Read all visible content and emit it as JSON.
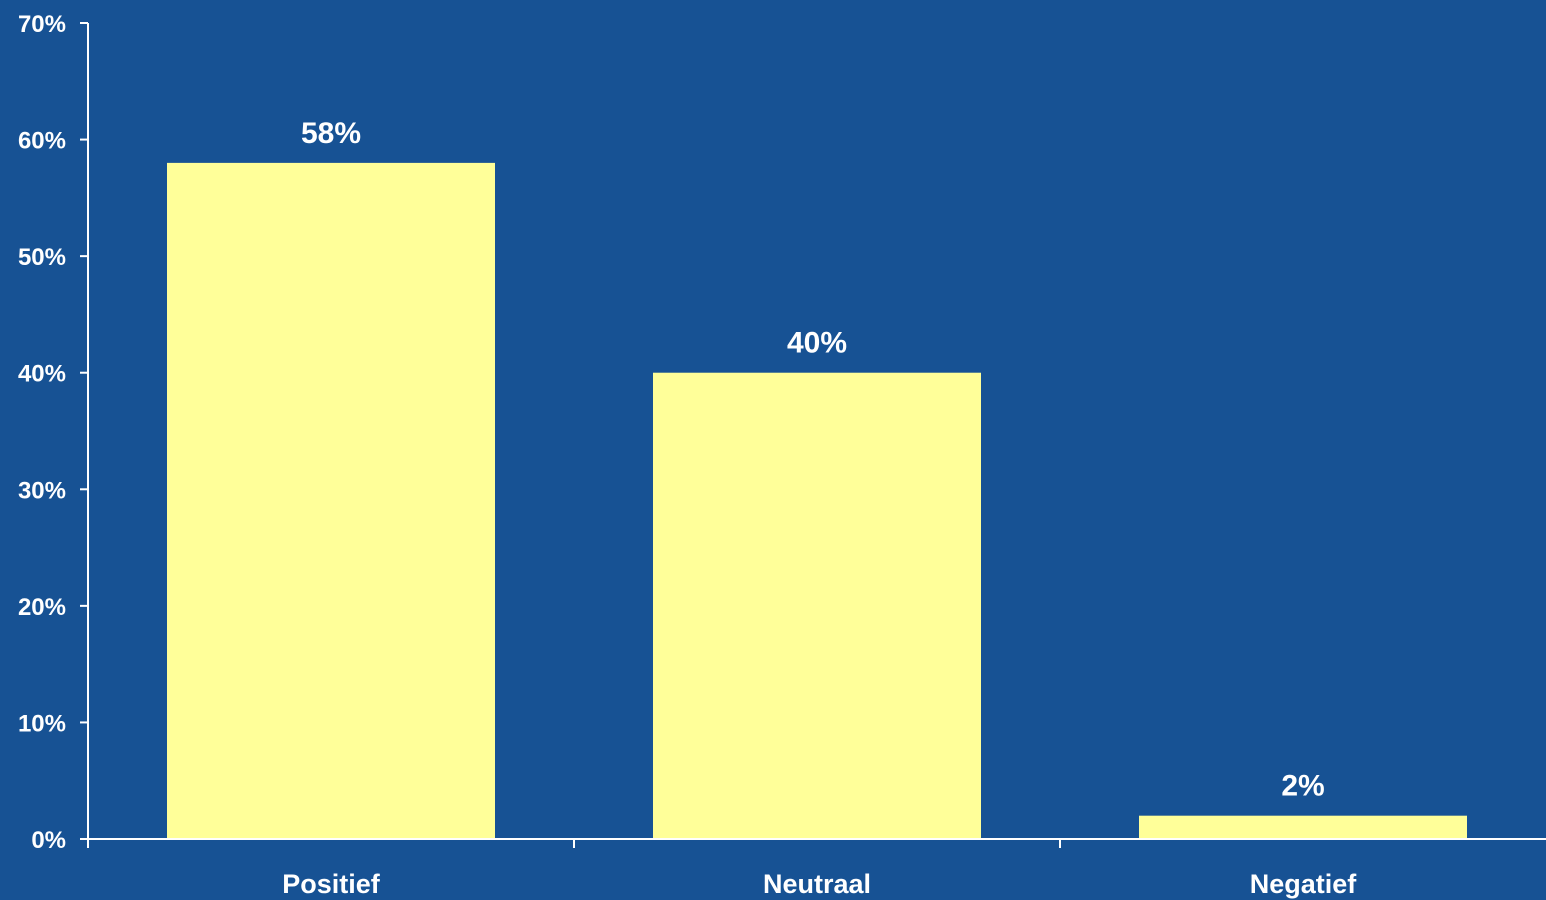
{
  "chart_data": {
    "type": "bar",
    "categories": [
      "Positief",
      "Neutraal",
      "Negatief"
    ],
    "values": [
      58,
      40,
      2
    ],
    "data_labels": [
      "58%",
      "40%",
      "2%"
    ],
    "y_ticks": [
      0,
      10,
      20,
      30,
      40,
      50,
      60,
      70
    ],
    "y_tick_labels": [
      "0%",
      "10%",
      "20%",
      "30%",
      "40%",
      "50%",
      "60%",
      "70%"
    ],
    "ylim": [
      0,
      70
    ],
    "title": "",
    "xlabel": "",
    "ylabel": "",
    "grid": false,
    "legend": "none",
    "colors": {
      "background": "#175294",
      "bar": "#ffff99",
      "axis": "#ffffff",
      "text": "#ffffff"
    }
  }
}
